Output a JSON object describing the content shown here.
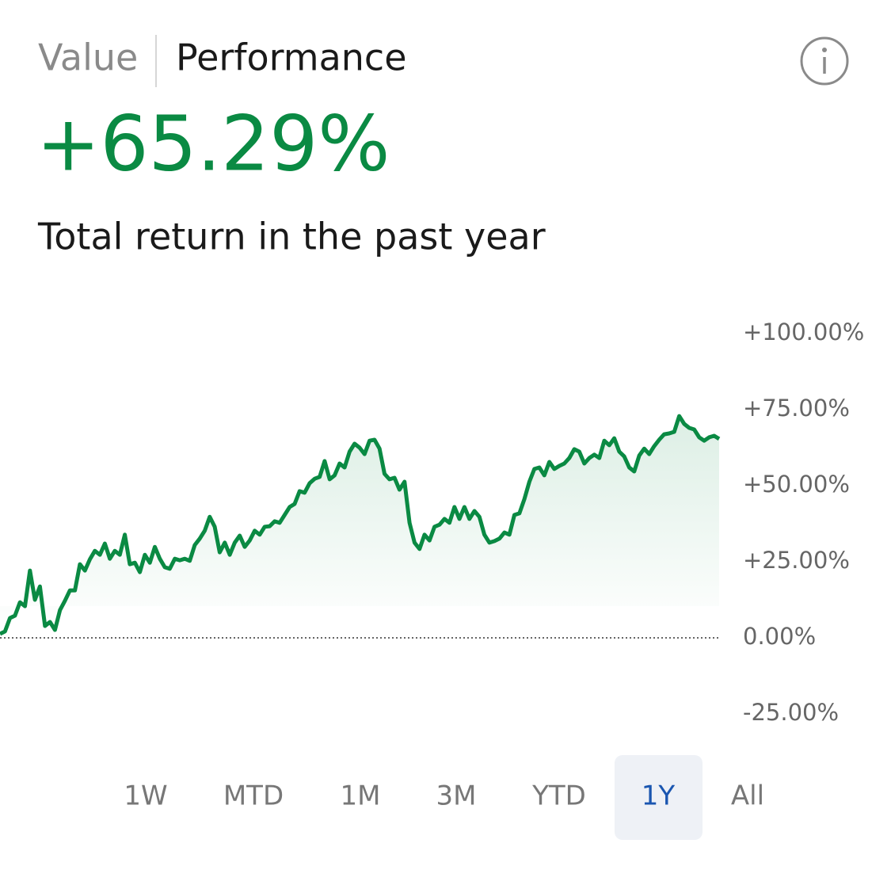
{
  "tabs": [
    "Value",
    "Performance"
  ],
  "headline": "+65.29%",
  "subtitle": "Total return in the past year",
  "chart_data": {
    "type": "line",
    "color": "#0a8a43",
    "values": [
      1.3,
      2.1,
      6.5,
      7.3,
      11.7,
      10.4,
      22.1,
      12.5,
      16.9,
      3.9,
      5.2,
      2.6,
      9.1,
      12.2,
      15.6,
      15.6,
      24.2,
      22.1,
      25.8,
      28.6,
      27.3,
      31.0,
      26.0,
      28.6,
      27.3,
      33.9,
      24.2,
      24.7,
      21.6,
      27.3,
      24.7,
      29.9,
      26.0,
      23.2,
      22.7,
      26.0,
      25.5,
      26.0,
      25.3,
      30.5,
      32.6,
      35.2,
      39.8,
      36.5,
      28.1,
      31.3,
      27.3,
      31.3,
      33.6,
      29.9,
      32.0,
      35.2,
      33.9,
      36.5,
      36.7,
      38.3,
      37.8,
      40.4,
      43.0,
      44.0,
      48.2,
      47.7,
      50.8,
      52.3,
      52.9,
      58.1,
      52.1,
      53.4,
      57.3,
      56.0,
      61.2,
      63.8,
      62.5,
      60.4,
      64.8,
      65.1,
      62.2,
      53.9,
      52.1,
      52.6,
      48.7,
      51.3,
      37.8,
      31.3,
      29.2,
      33.9,
      32.0,
      36.5,
      37.2,
      39.1,
      37.8,
      43.0,
      39.1,
      43.0,
      39.1,
      41.7,
      39.8,
      33.9,
      31.3,
      31.8,
      32.6,
      34.6,
      33.9,
      40.4,
      40.9,
      45.6,
      51.3,
      55.5,
      56.0,
      53.4,
      57.8,
      55.5,
      56.5,
      57.3,
      59.1,
      62.0,
      61.2,
      57.3,
      59.1,
      60.2,
      59.1,
      64.8,
      63.3,
      65.6,
      61.2,
      59.6,
      56.0,
      54.7,
      59.9,
      62.2,
      60.4,
      63.0,
      65.1,
      66.9,
      67.2,
      67.7,
      72.9,
      70.3,
      69.0,
      68.5,
      65.9,
      64.8,
      65.9,
      66.4,
      65.4
    ],
    "ylim": [
      -25,
      100
    ],
    "yticks": [
      {
        "value": 100,
        "label": "+100.00%"
      },
      {
        "value": 75,
        "label": "+75.00%"
      },
      {
        "value": 50,
        "label": "+50.00%"
      },
      {
        "value": 25,
        "label": "+25.00%"
      },
      {
        "value": 0,
        "label": "0.00%"
      },
      {
        "value": -25,
        "label": "-25.00%"
      }
    ]
  },
  "ranges": [
    "1W",
    "MTD",
    "1M",
    "3M",
    "YTD",
    "1Y",
    "All"
  ],
  "selected_range": 5
}
